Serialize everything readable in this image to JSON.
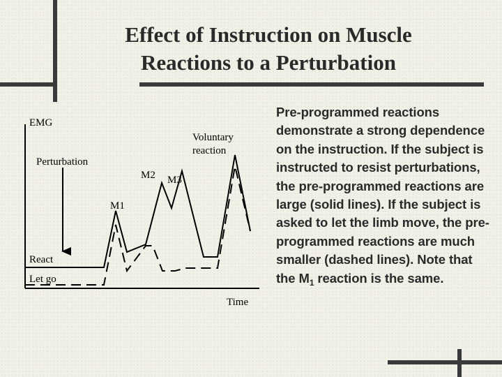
{
  "title_lines": [
    "Effect of Instruction on Muscle",
    "Reactions to a Perturbation"
  ],
  "diagram": {
    "labels": {
      "emg": "EMG",
      "perturbation": "Perturbation",
      "voluntary_line1": "Voluntary",
      "voluntary_line2": "reaction",
      "m1": "M1",
      "m2": "M2",
      "m3": "M3",
      "react": "React",
      "let_go": "Let go",
      "time": "Time"
    },
    "line_styles": {
      "react": "solid",
      "let_go": "dashed"
    }
  },
  "body": {
    "before_sub": "Pre-programmed reactions demonstrate a strong dependence on the instruction. If the subject is instructed to resist perturbations, the pre-programmed reactions are large (solid lines). If the subject is asked to let the limb move, the pre-programmed reactions are much smaller (dashed lines). Note that the M",
    "sub": "1",
    "after_sub": " reaction is the same."
  }
}
